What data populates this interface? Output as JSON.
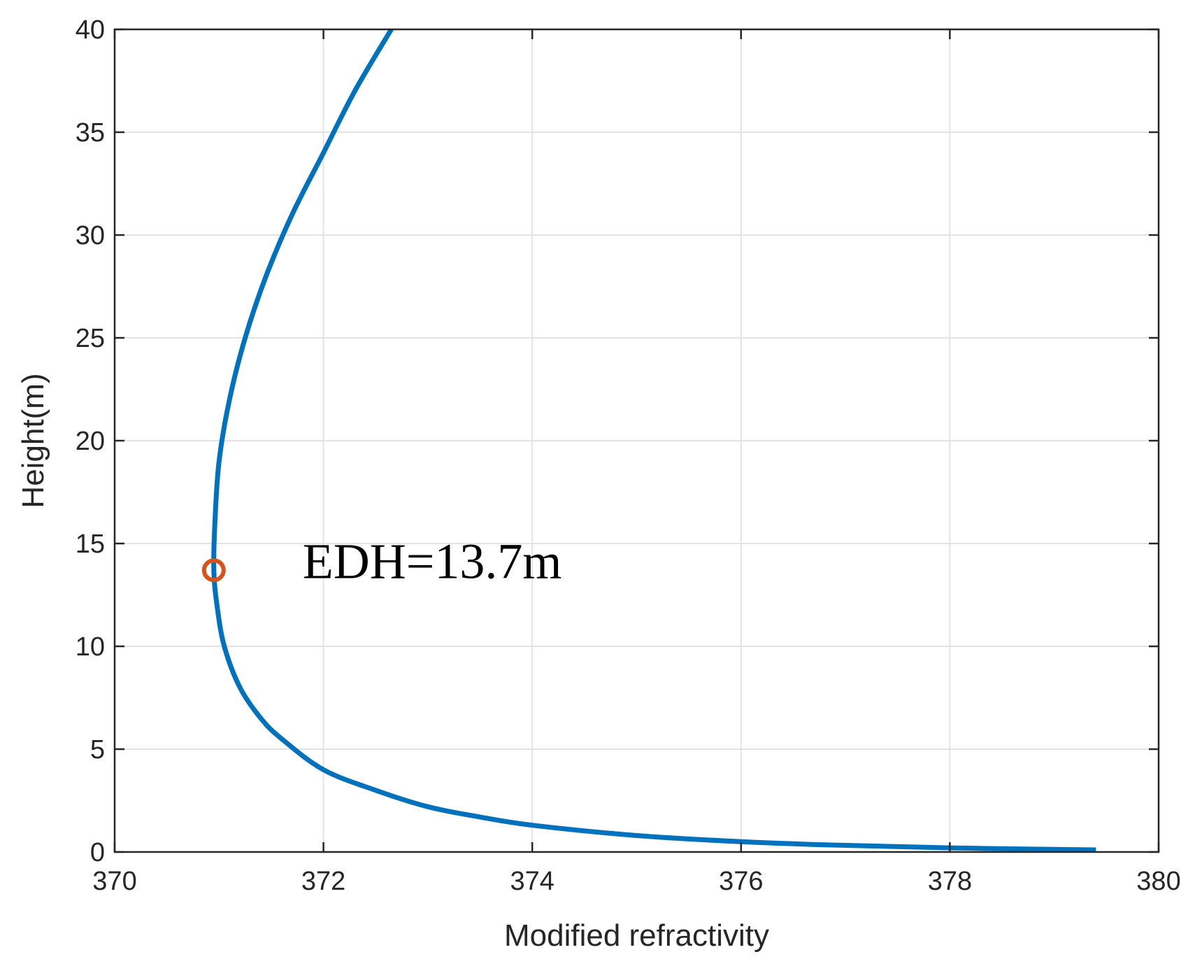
{
  "chart_data": {
    "type": "line",
    "title": "",
    "xlabel": "Modified refractivity",
    "ylabel": "Height(m)",
    "xlim": [
      370,
      380
    ],
    "ylim": [
      0,
      40
    ],
    "xticks": [
      370,
      372,
      374,
      376,
      378,
      380
    ],
    "yticks": [
      0,
      5,
      10,
      15,
      20,
      25,
      30,
      35,
      40
    ],
    "xtick_labels": [
      "370",
      "372",
      "374",
      "376",
      "378",
      "380"
    ],
    "ytick_labels": [
      "0",
      "5",
      "10",
      "15",
      "20",
      "25",
      "30",
      "35",
      "40"
    ],
    "grid": true,
    "series": [
      {
        "color": "#0072BD",
        "x": [
          379.4,
          378.0,
          376.8,
          376.0,
          375.0,
          374.0,
          373.5,
          373.0,
          372.5,
          372.0,
          371.6,
          371.4,
          371.2,
          371.05,
          370.98,
          370.95,
          370.96,
          371.0,
          371.1,
          371.25,
          371.45,
          371.7,
          372.0,
          372.3,
          372.65
        ],
        "y": [
          0.1,
          0.2,
          0.35,
          0.5,
          0.8,
          1.3,
          1.7,
          2.2,
          3.0,
          4.0,
          5.5,
          6.5,
          8.0,
          10.0,
          12.0,
          13.7,
          16.0,
          19.0,
          22.0,
          25.0,
          28.0,
          31.0,
          34.0,
          37.0,
          40.0
        ]
      }
    ],
    "markers": [
      {
        "x": 370.95,
        "y": 13.7,
        "color": "#D95319",
        "shape": "circle"
      }
    ],
    "annotations": [
      {
        "text": "EDH=13.7m",
        "x": 371.8,
        "y": 14.2
      }
    ]
  }
}
